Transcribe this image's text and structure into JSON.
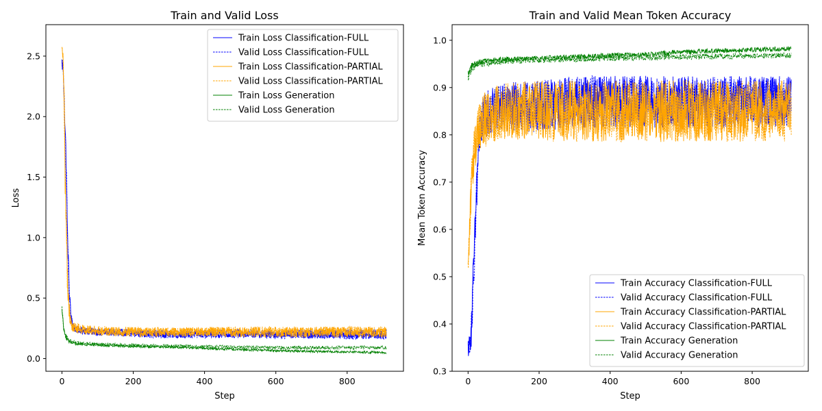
{
  "chart_data": [
    {
      "type": "line",
      "title": "Train and Valid Loss",
      "xlabel": "Step",
      "ylabel": "Loss",
      "xlim": [
        -45,
        958
      ],
      "ylim": [
        -0.105,
        2.76
      ],
      "xticks": [
        0,
        200,
        400,
        600,
        800
      ],
      "yticks": [
        0.0,
        0.5,
        1.0,
        1.5,
        2.0,
        2.5
      ],
      "ytick_format": 1,
      "grid": false,
      "legend_position": "upper-right",
      "legend_margin_right": true,
      "series": [
        {
          "name": "Train Loss Classification-FULL",
          "color": "#0000ff",
          "dash": "solid",
          "x": [
            0,
            3,
            6,
            9,
            12,
            15,
            20,
            25,
            30,
            40,
            60,
            100,
            200,
            300,
            400,
            500,
            600,
            700,
            800,
            910
          ],
          "y": [
            2.45,
            2.4,
            2.2,
            1.9,
            1.6,
            1.1,
            0.6,
            0.35,
            0.27,
            0.24,
            0.23,
            0.22,
            0.21,
            0.2,
            0.2,
            0.2,
            0.2,
            0.2,
            0.2,
            0.2
          ],
          "noise": [
            0.05,
            0.05,
            0.12,
            0.12,
            0.12,
            0.1,
            0.08,
            0.05,
            0.03,
            0.03,
            0.03,
            0.03,
            0.03,
            0.03,
            0.03,
            0.03,
            0.03,
            0.035,
            0.04,
            0.04
          ]
        },
        {
          "name": "Valid Loss Classification-FULL",
          "color": "#0000ff",
          "dash": "dashed",
          "x": [
            0,
            3,
            6,
            9,
            12,
            15,
            20,
            25,
            30,
            40,
            60,
            100,
            200,
            300,
            400,
            500,
            600,
            700,
            800,
            910
          ],
          "y": [
            2.45,
            2.4,
            2.2,
            1.9,
            1.6,
            1.1,
            0.6,
            0.35,
            0.27,
            0.24,
            0.23,
            0.22,
            0.21,
            0.2,
            0.2,
            0.21,
            0.2,
            0.2,
            0.2,
            0.2
          ],
          "noise": [
            0.05,
            0.05,
            0.12,
            0.12,
            0.12,
            0.1,
            0.08,
            0.05,
            0.03,
            0.03,
            0.03,
            0.03,
            0.035,
            0.035,
            0.035,
            0.035,
            0.035,
            0.035,
            0.04,
            0.04
          ]
        },
        {
          "name": "Train Loss Classification-PARTIAL",
          "color": "#ffa500",
          "dash": "solid",
          "x": [
            0,
            3,
            6,
            9,
            12,
            15,
            20,
            25,
            30,
            40,
            60,
            100,
            200,
            300,
            400,
            500,
            600,
            700,
            800,
            910
          ],
          "y": [
            2.55,
            2.5,
            2.1,
            1.5,
            1.1,
            0.7,
            0.4,
            0.3,
            0.26,
            0.25,
            0.24,
            0.23,
            0.22,
            0.22,
            0.22,
            0.22,
            0.22,
            0.22,
            0.22,
            0.22
          ],
          "noise": [
            0.05,
            0.05,
            0.15,
            0.15,
            0.15,
            0.12,
            0.08,
            0.05,
            0.04,
            0.04,
            0.04,
            0.04,
            0.04,
            0.04,
            0.04,
            0.04,
            0.045,
            0.045,
            0.045,
            0.045
          ]
        },
        {
          "name": "Valid Loss Classification-PARTIAL",
          "color": "#ffa500",
          "dash": "dashed",
          "x": [
            0,
            3,
            6,
            9,
            12,
            15,
            20,
            25,
            30,
            40,
            60,
            100,
            200,
            300,
            400,
            500,
            600,
            700,
            800,
            910
          ],
          "y": [
            2.55,
            2.5,
            2.1,
            1.5,
            1.1,
            0.7,
            0.4,
            0.3,
            0.26,
            0.25,
            0.24,
            0.23,
            0.22,
            0.22,
            0.22,
            0.22,
            0.22,
            0.22,
            0.22,
            0.22
          ],
          "noise": [
            0.05,
            0.05,
            0.15,
            0.15,
            0.15,
            0.12,
            0.08,
            0.05,
            0.04,
            0.04,
            0.04,
            0.04,
            0.04,
            0.04,
            0.04,
            0.045,
            0.045,
            0.045,
            0.045,
            0.045
          ]
        },
        {
          "name": "Train Loss Generation",
          "color": "#008000",
          "dash": "solid",
          "x": [
            0,
            5,
            10,
            20,
            40,
            100,
            200,
            300,
            400,
            500,
            600,
            700,
            800,
            910
          ],
          "y": [
            0.4,
            0.25,
            0.18,
            0.14,
            0.12,
            0.11,
            0.1,
            0.095,
            0.085,
            0.075,
            0.065,
            0.06,
            0.055,
            0.05
          ],
          "noise": [
            0.02,
            0.02,
            0.02,
            0.015,
            0.01,
            0.01,
            0.01,
            0.01,
            0.01,
            0.01,
            0.01,
            0.01,
            0.01,
            0.01
          ]
        },
        {
          "name": "Valid Loss Generation",
          "color": "#008000",
          "dash": "dashed",
          "x": [
            0,
            5,
            10,
            20,
            40,
            100,
            200,
            300,
            400,
            500,
            600,
            700,
            800,
            910
          ],
          "y": [
            0.42,
            0.26,
            0.19,
            0.15,
            0.13,
            0.12,
            0.11,
            0.105,
            0.1,
            0.095,
            0.09,
            0.09,
            0.09,
            0.09
          ],
          "noise": [
            0.02,
            0.02,
            0.02,
            0.015,
            0.012,
            0.012,
            0.012,
            0.012,
            0.012,
            0.015,
            0.015,
            0.015,
            0.015,
            0.015
          ]
        }
      ]
    },
    {
      "type": "line",
      "title": "Train and Valid Mean Token Accuracy",
      "xlabel": "Step",
      "ylabel": "Mean Token Accuracy",
      "xlim": [
        -45,
        958
      ],
      "ylim": [
        0.3,
        1.033
      ],
      "xticks": [
        0,
        200,
        400,
        600,
        800
      ],
      "yticks": [
        0.3,
        0.4,
        0.5,
        0.6,
        0.7,
        0.8,
        0.9,
        1.0
      ],
      "ytick_format": 1,
      "grid": false,
      "legend_position": "lower-right",
      "legend_margin_right": false,
      "series": [
        {
          "name": "Train Accuracy Classification-FULL",
          "color": "#0000ff",
          "dash": "solid",
          "x": [
            0,
            5,
            10,
            15,
            20,
            25,
            30,
            40,
            60,
            100,
            200,
            300,
            400,
            500,
            600,
            700,
            800,
            910
          ],
          "y": [
            0.35,
            0.36,
            0.4,
            0.5,
            0.6,
            0.7,
            0.78,
            0.83,
            0.85,
            0.86,
            0.86,
            0.87,
            0.87,
            0.87,
            0.87,
            0.87,
            0.87,
            0.87
          ],
          "noise": [
            0.02,
            0.02,
            0.05,
            0.05,
            0.05,
            0.05,
            0.05,
            0.05,
            0.05,
            0.05,
            0.055,
            0.055,
            0.055,
            0.055,
            0.055,
            0.055,
            0.055,
            0.055
          ]
        },
        {
          "name": "Valid Accuracy Classification-FULL",
          "color": "#0000ff",
          "dash": "dashed",
          "x": [
            0,
            5,
            10,
            15,
            20,
            25,
            30,
            40,
            60,
            100,
            200,
            300,
            400,
            500,
            600,
            700,
            800,
            910
          ],
          "y": [
            0.35,
            0.36,
            0.4,
            0.5,
            0.6,
            0.7,
            0.78,
            0.83,
            0.85,
            0.86,
            0.86,
            0.87,
            0.87,
            0.87,
            0.87,
            0.87,
            0.87,
            0.87
          ],
          "noise": [
            0.02,
            0.02,
            0.05,
            0.05,
            0.05,
            0.05,
            0.05,
            0.05,
            0.05,
            0.05,
            0.055,
            0.055,
            0.055,
            0.055,
            0.055,
            0.055,
            0.055,
            0.055
          ]
        },
        {
          "name": "Train Accuracy Classification-PARTIAL",
          "color": "#ffa500",
          "dash": "solid",
          "x": [
            0,
            5,
            10,
            15,
            20,
            25,
            30,
            40,
            60,
            100,
            200,
            300,
            400,
            500,
            600,
            700,
            800,
            910
          ],
          "y": [
            0.5,
            0.62,
            0.7,
            0.75,
            0.78,
            0.8,
            0.82,
            0.83,
            0.84,
            0.85,
            0.85,
            0.85,
            0.85,
            0.85,
            0.85,
            0.85,
            0.85,
            0.85
          ],
          "noise": [
            0.05,
            0.05,
            0.05,
            0.05,
            0.05,
            0.05,
            0.05,
            0.06,
            0.06,
            0.06,
            0.065,
            0.065,
            0.065,
            0.065,
            0.065,
            0.065,
            0.065,
            0.065
          ]
        },
        {
          "name": "Valid Accuracy Classification-PARTIAL",
          "color": "#ffa500",
          "dash": "dashed",
          "x": [
            0,
            5,
            10,
            15,
            20,
            25,
            30,
            40,
            60,
            100,
            200,
            300,
            400,
            500,
            600,
            700,
            800,
            910
          ],
          "y": [
            0.5,
            0.62,
            0.7,
            0.75,
            0.78,
            0.8,
            0.82,
            0.83,
            0.84,
            0.85,
            0.85,
            0.85,
            0.85,
            0.85,
            0.85,
            0.85,
            0.85,
            0.85
          ],
          "noise": [
            0.05,
            0.05,
            0.05,
            0.05,
            0.05,
            0.05,
            0.05,
            0.06,
            0.06,
            0.06,
            0.065,
            0.065,
            0.065,
            0.065,
            0.065,
            0.065,
            0.065,
            0.065
          ]
        },
        {
          "name": "Train Accuracy Generation",
          "color": "#008000",
          "dash": "solid",
          "x": [
            0,
            5,
            10,
            20,
            40,
            100,
            200,
            300,
            400,
            500,
            600,
            700,
            800,
            910
          ],
          "y": [
            0.93,
            0.94,
            0.945,
            0.95,
            0.955,
            0.96,
            0.962,
            0.965,
            0.968,
            0.97,
            0.975,
            0.978,
            0.98,
            0.982
          ],
          "noise": [
            0.008,
            0.008,
            0.007,
            0.007,
            0.006,
            0.005,
            0.005,
            0.005,
            0.005,
            0.005,
            0.005,
            0.005,
            0.005,
            0.005
          ]
        },
        {
          "name": "Valid Accuracy Generation",
          "color": "#008000",
          "dash": "dashed",
          "x": [
            0,
            5,
            10,
            20,
            40,
            100,
            200,
            300,
            400,
            500,
            600,
            700,
            800,
            910
          ],
          "y": [
            0.92,
            0.93,
            0.94,
            0.945,
            0.95,
            0.955,
            0.958,
            0.96,
            0.962,
            0.963,
            0.965,
            0.966,
            0.967,
            0.968
          ],
          "noise": [
            0.008,
            0.008,
            0.007,
            0.007,
            0.006,
            0.006,
            0.006,
            0.006,
            0.006,
            0.006,
            0.006,
            0.006,
            0.006,
            0.006
          ]
        }
      ]
    }
  ]
}
